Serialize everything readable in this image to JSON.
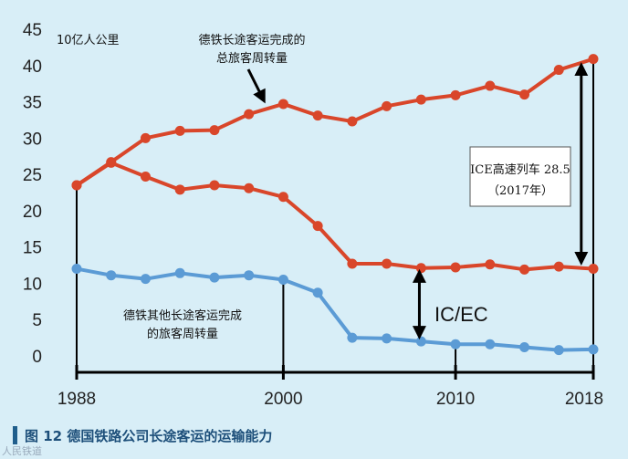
{
  "chart_data": {
    "type": "line",
    "unit_label": "10亿人公里",
    "ylim": [
      0,
      45
    ],
    "yticks": [
      0,
      5,
      10,
      15,
      20,
      25,
      30,
      35,
      40,
      45
    ],
    "xlim": [
      1988,
      2018
    ],
    "xticks": [
      1988,
      2000,
      2010,
      2018
    ],
    "series": [
      {
        "name": "德铁长途客运完成的总旅客周转量",
        "color": "#d9462a",
        "x": [
          1988,
          1990,
          1992,
          1994,
          1996,
          1998,
          2000,
          2002,
          2004,
          2006,
          2008,
          2010,
          2012,
          2014,
          2016,
          2018
        ],
        "values": [
          23.5,
          26.7,
          30.0,
          31.0,
          31.1,
          33.3,
          34.7,
          33.1,
          32.3,
          34.4,
          35.3,
          35.9,
          37.2,
          36.0,
          39.4,
          40.9
        ]
      },
      {
        "name": "IC/EC",
        "color": "#d9462a",
        "x": [
          1988,
          1990,
          1992,
          1994,
          1996,
          1998,
          2000,
          2002,
          2004,
          2006,
          2008,
          2010,
          2012,
          2014,
          2016,
          2018
        ],
        "values": [
          23.5,
          26.6,
          24.7,
          22.9,
          23.5,
          23.1,
          21.9,
          17.9,
          12.7,
          12.7,
          12.1,
          12.2,
          12.6,
          11.9,
          12.3,
          12.0
        ]
      },
      {
        "name": "德铁其他长途客运完成的旅客周转量",
        "color": "#5b9bd5",
        "x": [
          1988,
          1990,
          1992,
          1994,
          1996,
          1998,
          2000,
          2002,
          2004,
          2006,
          2008,
          2010,
          2012,
          2014,
          2016,
          2018
        ],
        "values": [
          12.0,
          11.1,
          10.6,
          11.4,
          10.8,
          11.1,
          10.5,
          8.7,
          2.5,
          2.4,
          2.0,
          1.6,
          1.6,
          1.2,
          0.8,
          0.9
        ]
      }
    ],
    "annotations": {
      "total_label_line1": "德铁长途客运完成的",
      "total_label_line2": "总旅客周转量",
      "other_label_line1": "德铁其他长途客运完成",
      "other_label_line2": "的旅客周转量",
      "ice_label_line1": "ICE高速列车 28.5",
      "ice_label_line2": "（2017年）",
      "icec_label": "IC/EC"
    }
  },
  "caption": {
    "text": "图 12   德国铁路公司长途客运的运输能力"
  },
  "watermark": "人民铁道"
}
